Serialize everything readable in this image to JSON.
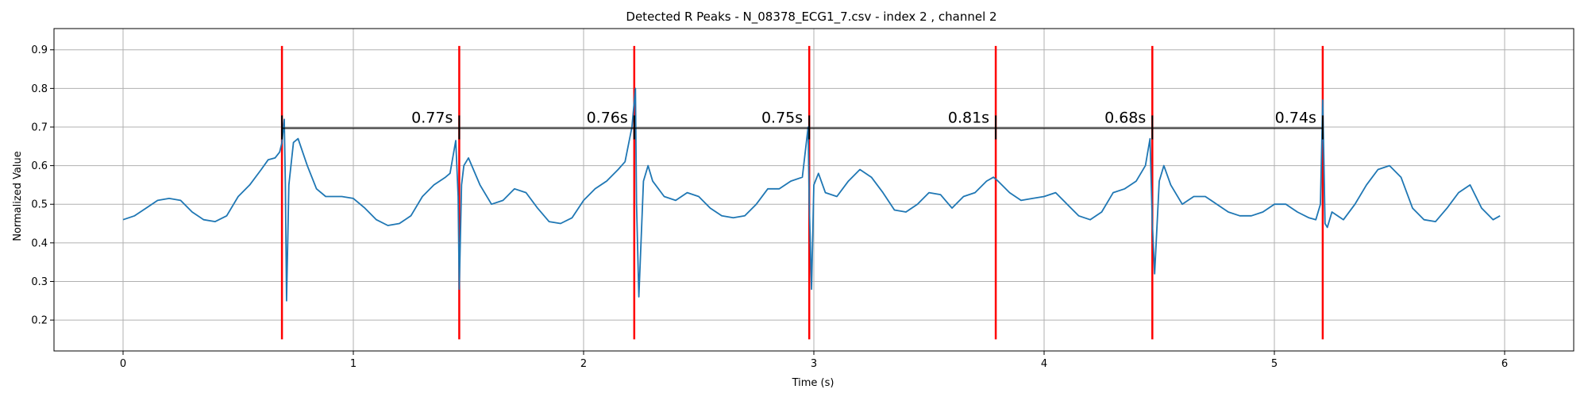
{
  "chart_data": {
    "type": "line",
    "title": "Detected R Peaks - N_08378_ECG1_7.csv - index 2 , channel 2",
    "xlabel": "Time (s)",
    "ylabel": "Normalized Value",
    "xlim": [
      -0.3,
      6.3
    ],
    "ylim": [
      0.12,
      0.955
    ],
    "xticks": [
      0,
      1,
      2,
      3,
      4,
      5,
      6
    ],
    "yticks": [
      0.2,
      0.3,
      0.4,
      0.5,
      0.6,
      0.7,
      0.8,
      0.9
    ],
    "grid": true,
    "colors": {
      "signal": "#1f77b4",
      "peak_marker": "#ff0000",
      "interval_line": "#000000",
      "grid": "#b0b0b0"
    },
    "signal": {
      "x": [
        0,
        0.05,
        0.1,
        0.15,
        0.2,
        0.25,
        0.3,
        0.35,
        0.4,
        0.45,
        0.5,
        0.55,
        0.6,
        0.63,
        0.66,
        0.68,
        0.69,
        0.7,
        0.705,
        0.71,
        0.72,
        0.74,
        0.76,
        0.8,
        0.84,
        0.88,
        0.95,
        1.0,
        1.05,
        1.1,
        1.15,
        1.2,
        1.25,
        1.3,
        1.35,
        1.4,
        1.42,
        1.445,
        1.455,
        1.46,
        1.47,
        1.48,
        1.5,
        1.55,
        1.6,
        1.65,
        1.7,
        1.75,
        1.8,
        1.85,
        1.9,
        1.95,
        2.0,
        2.05,
        2.1,
        2.15,
        2.18,
        2.21,
        2.225,
        2.23,
        2.24,
        2.26,
        2.28,
        2.3,
        2.35,
        2.4,
        2.45,
        2.5,
        2.55,
        2.6,
        2.65,
        2.7,
        2.75,
        2.8,
        2.85,
        2.9,
        2.95,
        2.975,
        2.98,
        2.99,
        3.0,
        3.02,
        3.05,
        3.1,
        3.15,
        3.2,
        3.25,
        3.3,
        3.35,
        3.4,
        3.45,
        3.5,
        3.55,
        3.6,
        3.65,
        3.7,
        3.75,
        3.78,
        3.79,
        3.8,
        3.85,
        3.9,
        3.95,
        4.0,
        4.05,
        4.1,
        4.15,
        4.2,
        4.25,
        4.3,
        4.35,
        4.4,
        4.44,
        4.46,
        4.47,
        4.48,
        4.5,
        4.52,
        4.55,
        4.6,
        4.65,
        4.7,
        4.75,
        4.8,
        4.85,
        4.9,
        4.95,
        5.0,
        5.05,
        5.1,
        5.15,
        5.18,
        5.2,
        5.21,
        5.215,
        5.22,
        5.23,
        5.25,
        5.3,
        5.35,
        5.4,
        5.45,
        5.5,
        5.55,
        5.6,
        5.65,
        5.7,
        5.75,
        5.8,
        5.85,
        5.9,
        5.95,
        5.98
      ],
      "y": [
        0.46,
        0.47,
        0.49,
        0.51,
        0.515,
        0.51,
        0.48,
        0.46,
        0.455,
        0.47,
        0.52,
        0.55,
        0.59,
        0.615,
        0.62,
        0.635,
        0.66,
        0.72,
        0.55,
        0.25,
        0.55,
        0.66,
        0.67,
        0.6,
        0.54,
        0.52,
        0.52,
        0.515,
        0.49,
        0.46,
        0.445,
        0.45,
        0.47,
        0.52,
        0.55,
        0.57,
        0.58,
        0.665,
        0.52,
        0.28,
        0.55,
        0.6,
        0.62,
        0.55,
        0.5,
        0.51,
        0.54,
        0.53,
        0.49,
        0.455,
        0.45,
        0.465,
        0.51,
        0.54,
        0.56,
        0.59,
        0.61,
        0.7,
        0.8,
        0.5,
        0.26,
        0.56,
        0.6,
        0.56,
        0.52,
        0.51,
        0.53,
        0.52,
        0.49,
        0.47,
        0.465,
        0.47,
        0.5,
        0.54,
        0.54,
        0.56,
        0.57,
        0.7,
        0.5,
        0.28,
        0.55,
        0.58,
        0.53,
        0.52,
        0.56,
        0.59,
        0.57,
        0.53,
        0.485,
        0.48,
        0.5,
        0.53,
        0.525,
        0.49,
        0.52,
        0.53,
        0.56,
        0.57,
        0.565,
        0.56,
        0.53,
        0.51,
        0.515,
        0.52,
        0.53,
        0.5,
        0.47,
        0.46,
        0.48,
        0.53,
        0.54,
        0.56,
        0.6,
        0.67,
        0.45,
        0.32,
        0.56,
        0.6,
        0.55,
        0.5,
        0.52,
        0.52,
        0.5,
        0.48,
        0.47,
        0.47,
        0.48,
        0.5,
        0.5,
        0.48,
        0.465,
        0.46,
        0.5,
        0.77,
        0.62,
        0.45,
        0.44,
        0.48,
        0.46,
        0.5,
        0.55,
        0.59,
        0.6,
        0.57,
        0.49,
        0.46,
        0.455,
        0.49,
        0.53,
        0.55,
        0.49,
        0.46,
        0.47
      ]
    },
    "r_peaks": [
      0.69,
      1.46,
      2.22,
      2.98,
      3.79,
      4.47,
      5.21
    ],
    "peak_line_range": [
      0.15,
      0.91
    ],
    "interval_line_y": 0.697,
    "interval_tick_range": [
      0.668,
      0.73
    ],
    "intervals": [
      "0.77s",
      "0.76s",
      "0.75s",
      "0.81s",
      "0.68s",
      "0.74s"
    ]
  }
}
